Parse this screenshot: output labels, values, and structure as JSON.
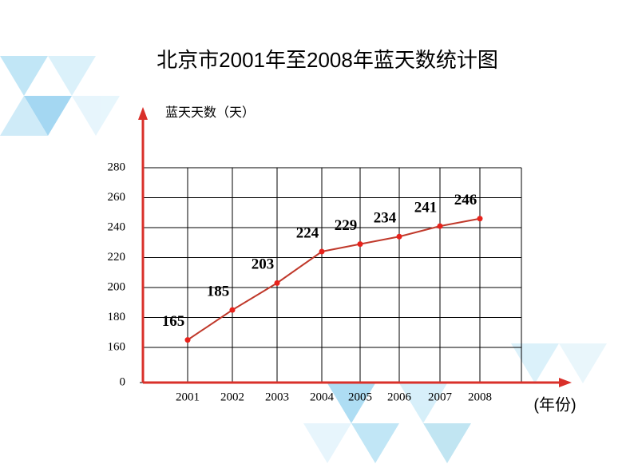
{
  "chart_data": {
    "type": "line",
    "title": "北京市2001年至2008年蓝天数统计图",
    "y_label": "蓝天天数（天）",
    "x_label": "(年份)",
    "categories": [
      "2001",
      "2002",
      "2003",
      "2004",
      "2005",
      "2006",
      "2007",
      "2008"
    ],
    "values": [
      165,
      185,
      203,
      224,
      229,
      234,
      241,
      246
    ],
    "value_labels": [
      "165",
      "185",
      "203",
      "224",
      "229",
      "234",
      "241",
      "246"
    ],
    "color": "#c0392b",
    "marker_color": "#e8221b",
    "axis_color": "#d9302a",
    "ylim": [
      0,
      280
    ],
    "axis_break": [
      0,
      160
    ],
    "yticks": [
      0,
      160,
      180,
      200,
      220,
      240,
      260,
      280
    ],
    "grid": true
  }
}
